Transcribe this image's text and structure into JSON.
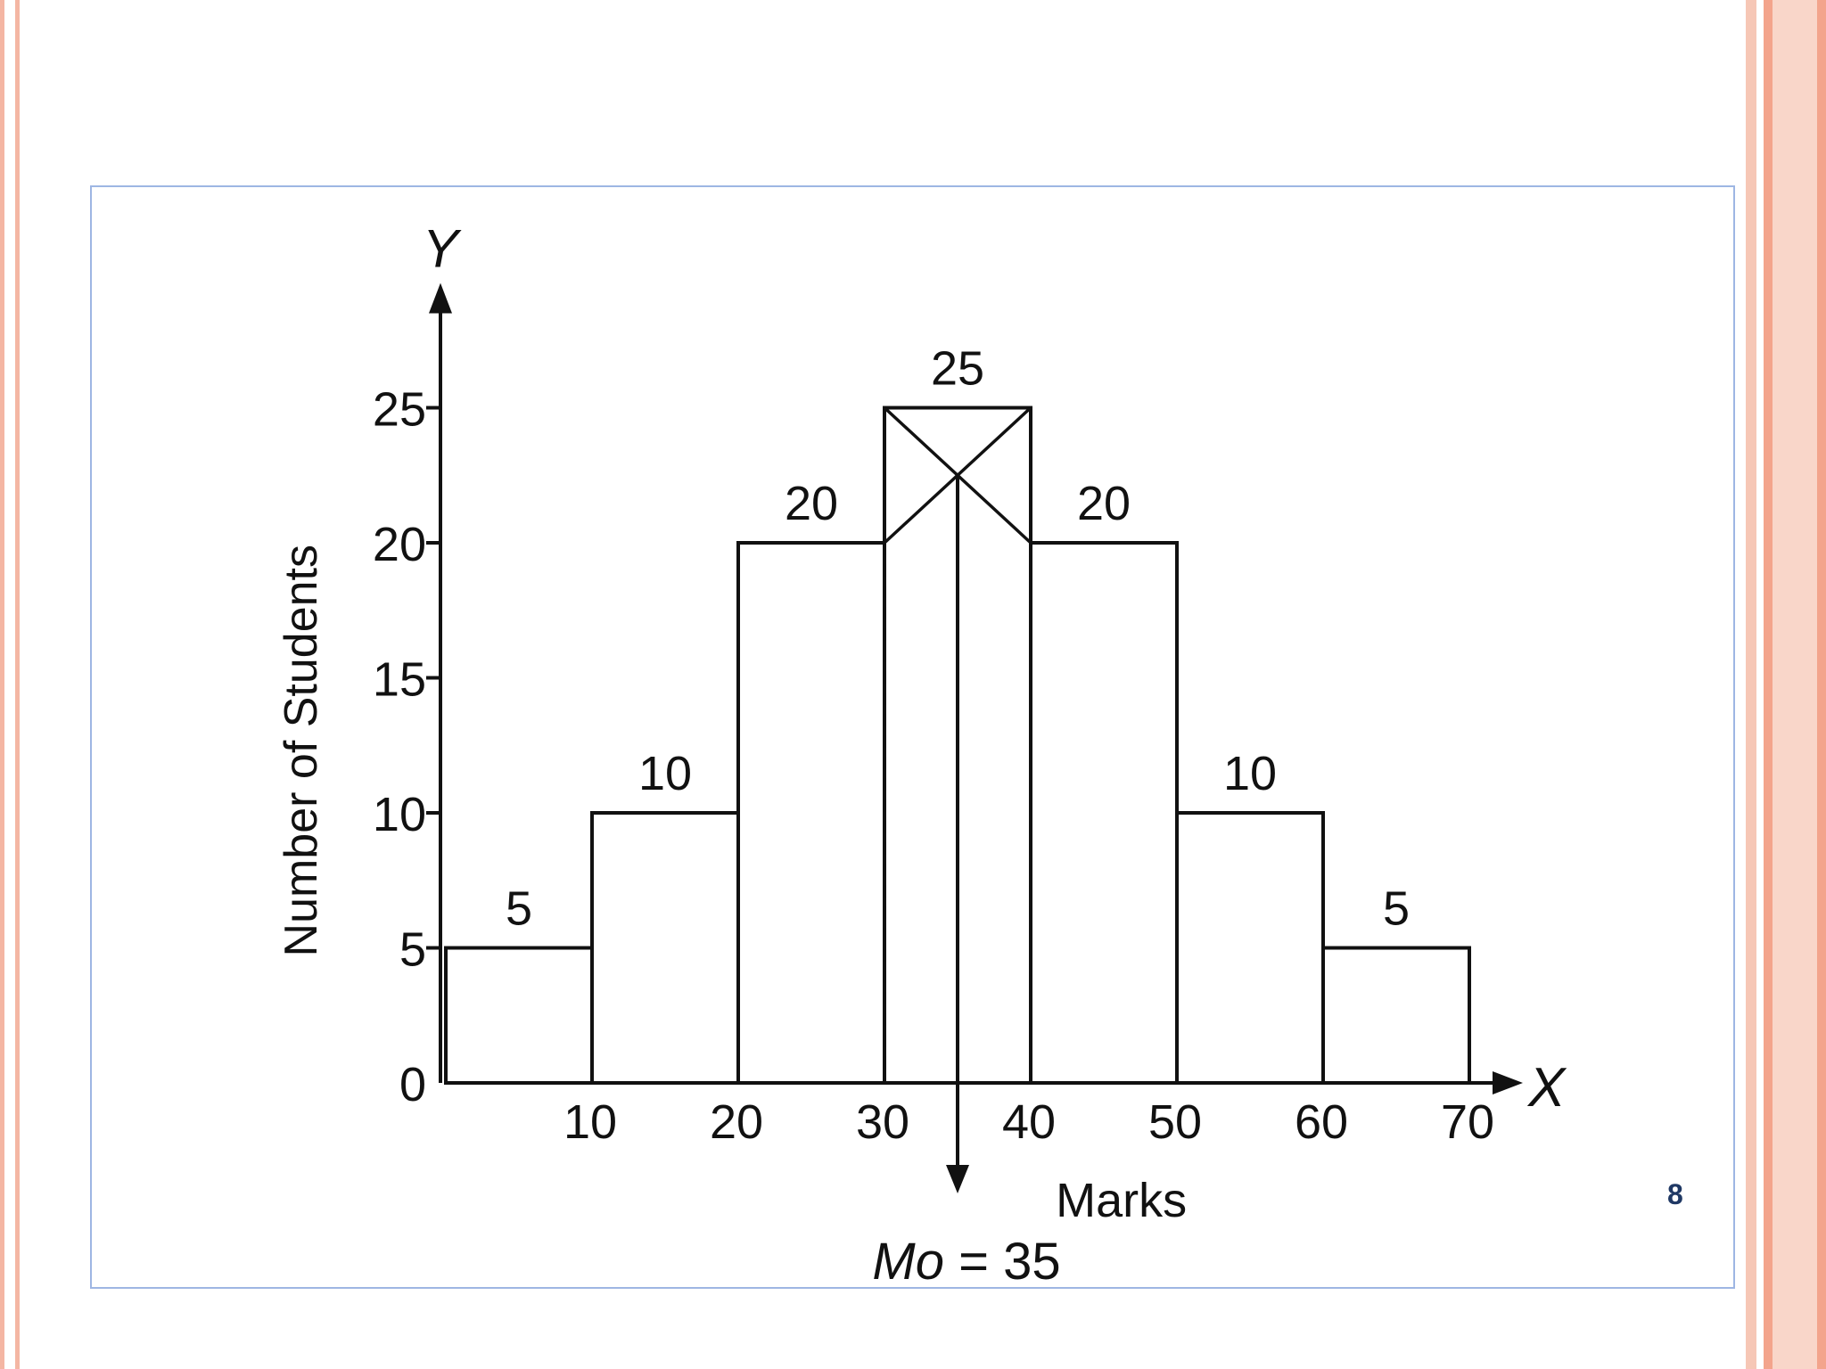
{
  "slide": {
    "page_number": "8",
    "colors": {
      "accent_border": "#f4b6a3",
      "frame_border": "#9eb6e3",
      "page_number": "#1f3864"
    }
  },
  "chart_data": {
    "type": "bar",
    "bins": [
      {
        "from": 0,
        "to": 10,
        "value": 5
      },
      {
        "from": 10,
        "to": 20,
        "value": 10
      },
      {
        "from": 20,
        "to": 30,
        "value": 20
      },
      {
        "from": 30,
        "to": 40,
        "value": 25
      },
      {
        "from": 40,
        "to": 50,
        "value": 20
      },
      {
        "from": 50,
        "to": 60,
        "value": 10
      },
      {
        "from": 60,
        "to": 70,
        "value": 5
      }
    ],
    "data_labels": [
      "5",
      "10",
      "20",
      "25",
      "20",
      "10",
      "5"
    ],
    "x_ticks": [
      "10",
      "20",
      "30",
      "40",
      "50",
      "60",
      "70"
    ],
    "y_ticks": [
      "0",
      "5",
      "10",
      "15",
      "20",
      "25"
    ],
    "xlim": [
      0,
      70
    ],
    "ylim": [
      0,
      25
    ],
    "x_axis_letter": "X",
    "y_axis_letter": "Y",
    "xlabel": "Marks",
    "ylabel": "Number of Students",
    "mode_value": 35,
    "mode_label_italic": "Mo",
    "mode_label_rest": " = 35",
    "grid": false,
    "line_color": "#111111"
  }
}
